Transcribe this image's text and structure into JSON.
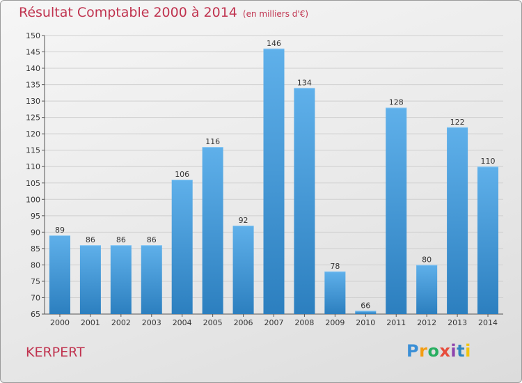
{
  "header": {
    "title": "Résultat Comptable 2000 à 2014",
    "subtitle": "(en milliers d'€)"
  },
  "footer": {
    "commune": "KERPERT",
    "logo_letters": [
      "P",
      "r",
      "o",
      "x",
      "i",
      "t",
      "i"
    ],
    "logo_colors": [
      "#3a8fd6",
      "#f39c12",
      "#27ae60",
      "#e74c3c",
      "#8e44ad",
      "#2e86c1",
      "#f1c40f"
    ]
  },
  "colors": {
    "accent": "#c0334f",
    "bar_top": "#5fb0ea",
    "bar_bottom": "#2c7fbf"
  },
  "chart_data": {
    "type": "bar",
    "title": "Résultat Comptable 2000 à 2014",
    "subtitle": "(en milliers d'€)",
    "categories": [
      "2000",
      "2001",
      "2002",
      "2003",
      "2004",
      "2005",
      "2006",
      "2007",
      "2008",
      "2009",
      "2010",
      "2011",
      "2012",
      "2013",
      "2014"
    ],
    "values": [
      89,
      86,
      86,
      86,
      106,
      116,
      92,
      146,
      134,
      78,
      66,
      128,
      80,
      122,
      110
    ],
    "ylim": [
      65,
      150
    ],
    "yticks": [
      65,
      70,
      75,
      80,
      85,
      90,
      95,
      100,
      105,
      110,
      115,
      120,
      125,
      130,
      135,
      140,
      145,
      150
    ],
    "grid": true,
    "data_labels": true,
    "xlabel": "",
    "ylabel": ""
  }
}
